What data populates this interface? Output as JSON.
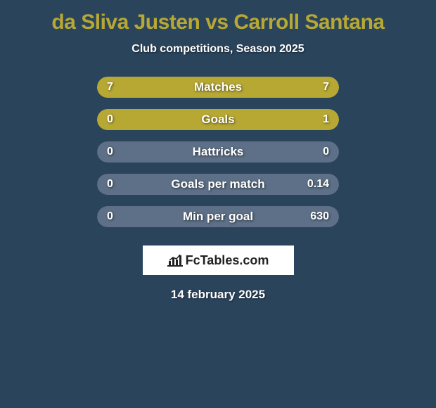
{
  "title": "da Sliva Justen vs Carroll Santana",
  "subtitle": "Club competitions, Season 2025",
  "colors": {
    "background": "#2a445c",
    "accent": "#b7a834",
    "bar_empty": "#5d7087",
    "bar_fill": "#b7a834",
    "text": "#ffffff",
    "shape_white": "#ffffff",
    "shape_grey": "#d9d9d9"
  },
  "rows": [
    {
      "label": "Matches",
      "left_val": "7",
      "right_val": "7",
      "left_fill_pct": 50,
      "right_fill_pct": 50,
      "shape_left": "white",
      "shape_right": "white"
    },
    {
      "label": "Goals",
      "left_val": "0",
      "right_val": "1",
      "left_fill_pct": 20,
      "right_fill_pct": 80,
      "shape_left": "grey",
      "shape_right": "grey"
    },
    {
      "label": "Hattricks",
      "left_val": "0",
      "right_val": "0",
      "left_fill_pct": 0,
      "right_fill_pct": 0,
      "shape_left": null,
      "shape_right": null
    },
    {
      "label": "Goals per match",
      "left_val": "0",
      "right_val": "0.14",
      "left_fill_pct": 0,
      "right_fill_pct": 0,
      "shape_left": null,
      "shape_right": null
    },
    {
      "label": "Min per goal",
      "left_val": "0",
      "right_val": "630",
      "left_fill_pct": 0,
      "right_fill_pct": 0,
      "shape_left": null,
      "shape_right": null
    }
  ],
  "logo": "FcTables.com",
  "date": "14 february 2025"
}
